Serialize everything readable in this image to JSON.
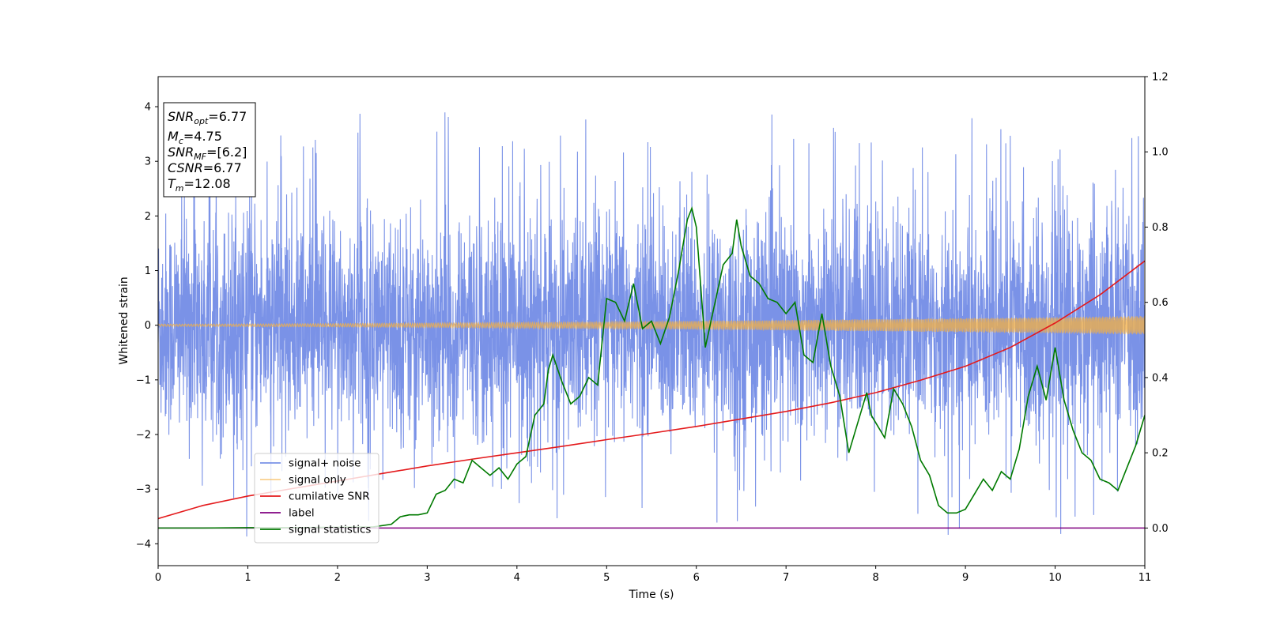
{
  "chart_data": {
    "type": "line",
    "xlabel": "Time (s)",
    "ylabel": "Whitened strain",
    "xlim": [
      0,
      11
    ],
    "ylim": [
      -4.4,
      4.55
    ],
    "y2lim": [
      -0.1,
      1.2
    ],
    "xticks": [
      0,
      1,
      2,
      3,
      4,
      5,
      6,
      7,
      8,
      9,
      10,
      11
    ],
    "yticks": [
      -4,
      -3,
      -2,
      -1,
      0,
      1,
      2,
      3,
      4
    ],
    "y2ticks": [
      0.0,
      0.2,
      0.4,
      0.6,
      0.8,
      1.0,
      1.2
    ],
    "grid": false,
    "legend_position": "lower-left",
    "annotation_box": {
      "position": "top-left",
      "lines": [
        {
          "base": "SNR",
          "sub": "opt",
          "rest": "=6.77"
        },
        {
          "base": "M",
          "sub": "c",
          "rest": "=4.75"
        },
        {
          "base": "SNR",
          "sub": "MF",
          "rest": "=[6.2]"
        },
        {
          "base": "CSNR",
          "sub": "",
          "rest": "=6.77"
        },
        {
          "base": "T",
          "sub": "m",
          "rest": "=12.08"
        }
      ]
    },
    "series": [
      {
        "name": "signal+ noise",
        "color": "#6b86e4",
        "axis": "left",
        "kind": "noise",
        "note_values": "gaussian-like whitened noise, amplitude about ±2.5 with spikes to about ±4",
        "envelope_core": 1.4,
        "envelope_spike": [
          3.7,
          -3.9
        ]
      },
      {
        "name": "signal only",
        "color": "#f5b041",
        "axis": "left",
        "kind": "chirp",
        "amp_start": 0.02,
        "amp_end": 0.17
      },
      {
        "name": "cumilative SNR",
        "color": "#e41a1c",
        "axis": "right",
        "x": [
          0,
          0.5,
          1,
          1.5,
          2,
          2.5,
          3,
          3.5,
          4,
          4.5,
          5,
          5.5,
          6,
          6.5,
          7,
          7.5,
          8,
          8.5,
          9,
          9.5,
          10,
          10.5,
          11
        ],
        "y": [
          0.025,
          0.06,
          0.085,
          0.105,
          0.125,
          0.145,
          0.165,
          0.183,
          0.2,
          0.217,
          0.235,
          0.252,
          0.27,
          0.29,
          0.31,
          0.333,
          0.36,
          0.393,
          0.43,
          0.48,
          0.545,
          0.62,
          0.71
        ]
      },
      {
        "name": "label",
        "color": "#800080",
        "axis": "right",
        "x": [
          0,
          11
        ],
        "y": [
          0.0,
          0.0
        ]
      },
      {
        "name": "signal statistics",
        "color": "#007a00",
        "axis": "right",
        "x": [
          0,
          0.5,
          1.0,
          1.5,
          2.0,
          2.4,
          2.6,
          2.7,
          2.8,
          2.9,
          3.0,
          3.1,
          3.2,
          3.3,
          3.4,
          3.5,
          3.6,
          3.7,
          3.8,
          3.9,
          4.0,
          4.1,
          4.2,
          4.3,
          4.35,
          4.4,
          4.5,
          4.6,
          4.7,
          4.8,
          4.9,
          5.0,
          5.1,
          5.2,
          5.3,
          5.4,
          5.5,
          5.6,
          5.7,
          5.8,
          5.9,
          5.95,
          6.0,
          6.1,
          6.2,
          6.3,
          6.4,
          6.45,
          6.5,
          6.6,
          6.7,
          6.8,
          6.9,
          7.0,
          7.1,
          7.2,
          7.3,
          7.4,
          7.5,
          7.6,
          7.7,
          7.8,
          7.9,
          7.95,
          8.0,
          8.1,
          8.2,
          8.3,
          8.4,
          8.5,
          8.6,
          8.7,
          8.8,
          8.9,
          9.0,
          9.1,
          9.2,
          9.3,
          9.4,
          9.5,
          9.6,
          9.7,
          9.8,
          9.9,
          10.0,
          10.1,
          10.2,
          10.3,
          10.4,
          10.5,
          10.6,
          10.7,
          10.8,
          10.9,
          11.0
        ],
        "y": [
          0.0,
          0.0,
          0.001,
          0.001,
          0.002,
          0.003,
          0.01,
          0.03,
          0.035,
          0.035,
          0.04,
          0.09,
          0.1,
          0.13,
          0.12,
          0.18,
          0.16,
          0.14,
          0.16,
          0.13,
          0.17,
          0.19,
          0.3,
          0.33,
          0.42,
          0.46,
          0.39,
          0.33,
          0.35,
          0.4,
          0.38,
          0.61,
          0.6,
          0.55,
          0.65,
          0.53,
          0.55,
          0.49,
          0.56,
          0.68,
          0.82,
          0.85,
          0.8,
          0.48,
          0.59,
          0.7,
          0.73,
          0.82,
          0.75,
          0.67,
          0.65,
          0.61,
          0.6,
          0.57,
          0.6,
          0.46,
          0.44,
          0.57,
          0.43,
          0.35,
          0.2,
          0.28,
          0.36,
          0.3,
          0.28,
          0.24,
          0.37,
          0.33,
          0.27,
          0.18,
          0.14,
          0.06,
          0.04,
          0.04,
          0.05,
          0.09,
          0.13,
          0.1,
          0.15,
          0.13,
          0.21,
          0.35,
          0.43,
          0.34,
          0.48,
          0.34,
          0.26,
          0.2,
          0.18,
          0.13,
          0.12,
          0.1,
          0.16,
          0.22,
          0.3
        ]
      }
    ]
  }
}
